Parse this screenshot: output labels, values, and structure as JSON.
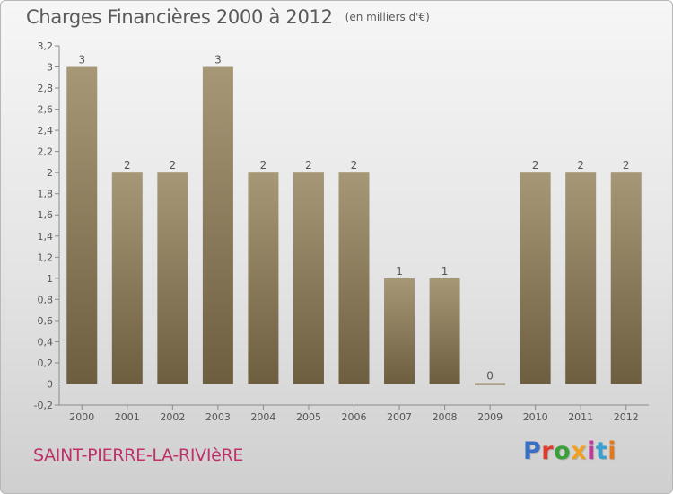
{
  "header": {
    "title": "Charges Financières 2000 à 2012",
    "unit": "(en milliers d'€)"
  },
  "footer": {
    "commune": "SAINT-PIERRE-LA-RIVIèRE",
    "logo": "Proxiti"
  },
  "colors": {
    "bar_top": "#a69877",
    "bar_bottom": "#6e5e40",
    "text": "#5a5a5a",
    "commune": "#c0306a",
    "logo_letters": [
      "#3a6fc4",
      "#e03a2a",
      "#3aa03a",
      "#f0a020",
      "#c03a9a",
      "#3aa0d0",
      "#e07a20"
    ]
  },
  "chart_data": {
    "type": "bar",
    "title": "Charges Financières 2000 à 2012",
    "subtitle": "(en milliers d'€)",
    "categories": [
      "2000",
      "2001",
      "2002",
      "2003",
      "2004",
      "2005",
      "2006",
      "2007",
      "2008",
      "2009",
      "2010",
      "2011",
      "2012"
    ],
    "values": [
      3,
      2,
      2,
      3,
      2,
      2,
      2,
      1,
      1,
      0,
      2,
      2,
      2
    ],
    "data_labels": [
      "3",
      "2",
      "2",
      "3",
      "2",
      "2",
      "2",
      "1",
      "1",
      "0",
      "2",
      "2",
      "2"
    ],
    "ylim": [
      -0.2,
      3.2
    ],
    "yticks": [
      "-0,2",
      "0",
      "0,2",
      "0,4",
      "0,6",
      "0,8",
      "1",
      "1,2",
      "1,4",
      "1,6",
      "1,8",
      "2",
      "2,2",
      "2,4",
      "2,6",
      "2,8",
      "3",
      "3,2"
    ],
    "ytick_values": [
      -0.2,
      0,
      0.2,
      0.4,
      0.6,
      0.8,
      1,
      1.2,
      1.4,
      1.6,
      1.8,
      2,
      2.2,
      2.4,
      2.6,
      2.8,
      3,
      3.2
    ],
    "grid": false,
    "legend": "none"
  }
}
